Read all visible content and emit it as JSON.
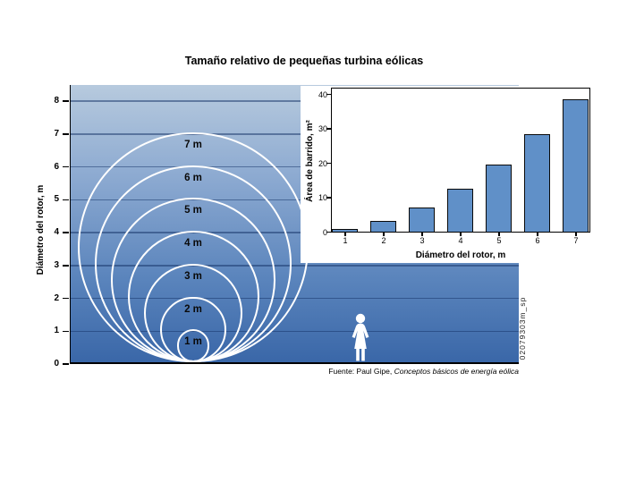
{
  "title": "Tamaño relativo de pequeñas turbina eólicas",
  "watermark": "02079303m_sp",
  "source": {
    "prefix": "Fuente: Paul Gipe, ",
    "italic": "Conceptos básicos de energía eólica"
  },
  "colors": {
    "plot_gradient_top": "#b7cade",
    "plot_gradient_bottom": "#3a67a8",
    "gridline": "rgba(18,48,100,0.5)",
    "bar_fill": "#6090c8",
    "circle_stroke": "#ffffff"
  },
  "main_chart": {
    "ylabel": "Diámetro del rotor, m",
    "yticks": [
      0,
      1,
      2,
      3,
      4,
      5,
      6,
      7,
      8
    ],
    "circles": [
      {
        "diameter_m": 1,
        "label": "1 m"
      },
      {
        "diameter_m": 2,
        "label": "2 m"
      },
      {
        "diameter_m": 3,
        "label": "3 m"
      },
      {
        "diameter_m": 4,
        "label": "4 m"
      },
      {
        "diameter_m": 5,
        "label": "5 m"
      },
      {
        "diameter_m": 6,
        "label": "6 m"
      },
      {
        "diameter_m": 7,
        "label": "7 m"
      }
    ]
  },
  "chart_data": [
    {
      "type": "other",
      "title": "Tamaño relativo de pequeñas turbina eólicas",
      "description": "Tangent circles comparing wind turbine rotor diameters of 1 to 7 m, with a standing person for scale",
      "ylabel": "Diámetro del rotor, m",
      "ylim": [
        0,
        8
      ],
      "yticks": [
        0,
        1,
        2,
        3,
        4,
        5,
        6,
        7,
        8
      ],
      "circle_diameters_m": [
        1,
        2,
        3,
        4,
        5,
        6,
        7
      ],
      "circle_labels": [
        "1 m",
        "2 m",
        "3 m",
        "4 m",
        "5 m",
        "6 m",
        "7 m"
      ]
    },
    {
      "type": "bar",
      "categories": [
        "1",
        "2",
        "3",
        "4",
        "5",
        "6",
        "7"
      ],
      "values": [
        0.8,
        3.1,
        7.1,
        12.6,
        19.6,
        28.3,
        38.5
      ],
      "xlabel": "Diámetro del rotor, m",
      "ylabel": "Área de barrido, m²",
      "ylim": [
        0,
        40
      ],
      "yticks": [
        0,
        10,
        20,
        30,
        40
      ],
      "grid": false,
      "legend": false
    }
  ]
}
